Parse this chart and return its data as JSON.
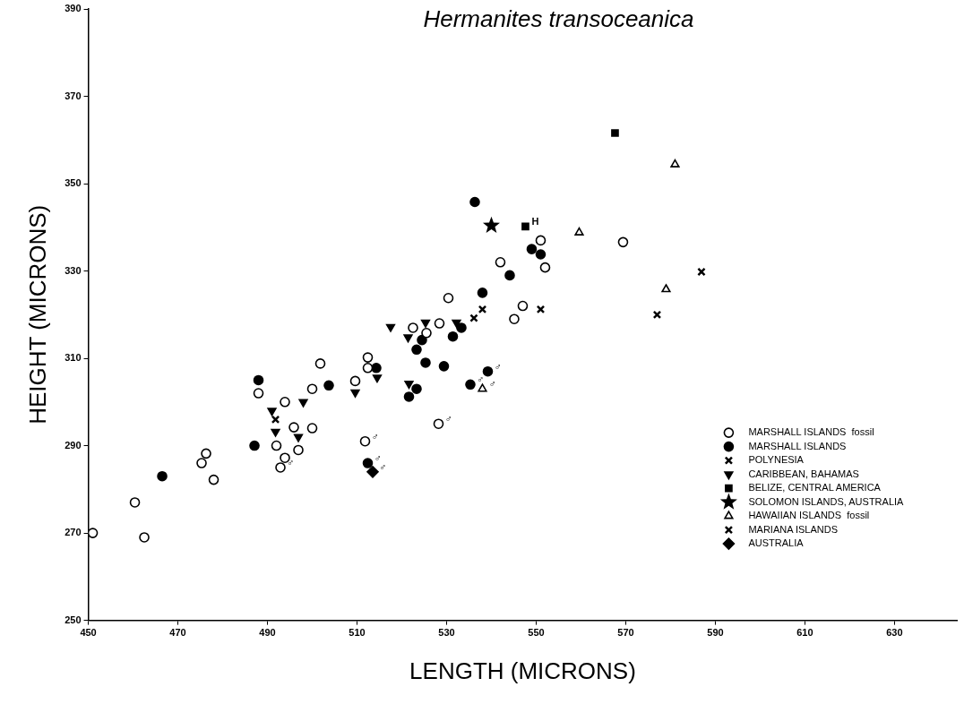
{
  "chart_data": {
    "type": "scatter",
    "title": "Hermanites transoceanica",
    "xlabel": "LENGTH (MICRONS)",
    "ylabel": "HEIGHT (MICRONS)",
    "xlim": [
      450,
      644
    ],
    "xticks": [
      450,
      470,
      490,
      510,
      530,
      550,
      570,
      590,
      610,
      630
    ],
    "ylim": [
      250,
      390
    ],
    "yticks": [
      250,
      270,
      290,
      310,
      330,
      350,
      370,
      390
    ],
    "grid": false,
    "legend": "bottom right",
    "series": [
      {
        "name": "MARSHALL ISLANDS  fossil",
        "marker": "circle",
        "x": [
          451,
          460.4,
          462.5,
          475.3,
          476.3,
          478,
          488,
          492,
          493.9,
          492.9,
          493.9,
          495.9,
          500,
          496.9,
          500,
          501.8,
          509.6,
          512.4,
          512.4,
          511.8,
          522.5,
          525.5,
          528.4,
          530.4,
          528.2,
          542,
          547,
          545.1,
          551,
          552,
          569.4
        ],
        "values": [
          270,
          277,
          269,
          286,
          288.2,
          282.2,
          302,
          290,
          287.2,
          285,
          300,
          294.2,
          294,
          289,
          303,
          308.8,
          304.8,
          310.2,
          307.8,
          291,
          317,
          315.8,
          318,
          323.8,
          295,
          332,
          322,
          319,
          337,
          330.8,
          336.6
        ]
      },
      {
        "name": "MARSHALL ISLANDS",
        "color": "#000000",
        "marker": "circle",
        "x": [
          466.5,
          487.1,
          488,
          503.7,
          514.3,
          512.4,
          521.6,
          523.3,
          524.5,
          523.3,
          525.3,
          529.4,
          531.4,
          533.3,
          535.3,
          539.2,
          538,
          544.1,
          549,
          551,
          536.3
        ],
        "values": [
          283,
          290,
          305,
          303.8,
          307.8,
          286,
          301.2,
          303,
          314.2,
          312,
          309,
          308.2,
          315,
          317,
          304,
          307,
          325,
          329,
          335,
          333.8,
          345.8
        ]
      },
      {
        "name": "POLYNESIA",
        "color": "#000000",
        "marker": "cross",
        "x": [
          577,
          586.9
        ],
        "values": [
          320,
          329.8
        ]
      },
      {
        "name": "CARIBBEAN, BAHAMAS",
        "color": "#000000",
        "marker": "triangle",
        "x": [
          491,
          491.8,
          496.9,
          498,
          509.6,
          514.5,
          517.5,
          521.4,
          521.6,
          525.3,
          532.2
        ],
        "values": [
          298,
          293.2,
          292,
          300,
          302.2,
          305.6,
          317.2,
          314.8,
          304.2,
          318.2,
          318.2
        ]
      },
      {
        "name": "BELIZE, CENTRAL AMERICA",
        "color": "#000000",
        "marker": "square",
        "x": [
          567.6,
          547.6
        ],
        "values": [
          361.6,
          340.2
        ]
      },
      {
        "name": "SOLOMON ISLANDS, AUSTRALIA",
        "color": "#000000",
        "marker": "star",
        "x": [
          540
        ],
        "values": [
          340.4
        ]
      },
      {
        "name": "HAWAIIAN ISLANDS  fossil",
        "marker": "triangle",
        "x": [
          538,
          559.6,
          579,
          581
        ],
        "values": [
          303,
          338.8,
          325.8,
          354.4
        ]
      },
      {
        "name": "MARIANA ISLANDS",
        "color": "#000000",
        "marker": "cross",
        "x": [
          491.8,
          536.1,
          538,
          551
        ],
        "values": [
          296,
          319.2,
          321.2,
          321.2
        ]
      },
      {
        "name": "AUSTRALIA",
        "color": "#000000",
        "marker": "diamond",
        "x": [
          513.5
        ],
        "values": [
          284
        ]
      }
    ],
    "annotations": [
      {
        "text": "H",
        "x": 547.6,
        "y": 340.2
      },
      {
        "text": "♂",
        "x": 492.9,
        "y": 285
      },
      {
        "text": "♂",
        "x": 511.8,
        "y": 291
      },
      {
        "text": "♂",
        "x": 528.2,
        "y": 295
      },
      {
        "text": "♂",
        "x": 512.4,
        "y": 286
      },
      {
        "text": "♂",
        "x": 513.5,
        "y": 284
      },
      {
        "text": "♂",
        "x": 535.3,
        "y": 304
      },
      {
        "text": "♂",
        "x": 539.2,
        "y": 307
      },
      {
        "text": "♂",
        "x": 538,
        "y": 303
      }
    ]
  }
}
